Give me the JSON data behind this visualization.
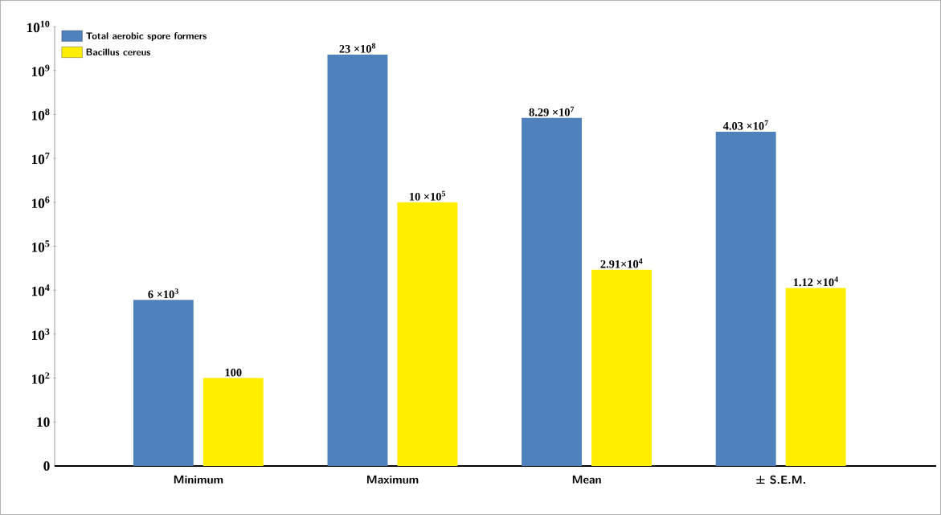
{
  "chart_data": {
    "type": "bar",
    "categories": [
      "Minimum",
      "Maximum",
      "Mean",
      "± S.E.M."
    ],
    "series": [
      {
        "name": "Total aerobic spore formers",
        "color": "#4f81bd",
        "values": [
          6000,
          2300000000,
          82900000,
          40300000
        ],
        "value_labels": [
          "6 ×10$^{3}$",
          "23 ×10$^{8}$",
          "8.29 ×10$^{7}$",
          "4.03 ×10$^{7}$"
        ]
      },
      {
        "name": "Bacillus cereus",
        "color": "#ffee00",
        "values": [
          100,
          1000000,
          29100,
          11200
        ],
        "value_labels": [
          "100",
          "10 ×10$^{5}$",
          "2.91×10$^{4}$",
          "1.12 ×10$^{4}$"
        ]
      }
    ],
    "log": true,
    "ylim": [
      0,
      10000000000
    ],
    "yticks": [
      0,
      {
        "value": 10,
        "label": "10"
      },
      {
        "value": 100,
        "label": "10$^{2}$"
      },
      {
        "value": 1000,
        "label": "10$^{3}$"
      },
      {
        "value": 10000,
        "label": "10$^{4}$"
      },
      {
        "value": 100000,
        "label": "10$^{5}$"
      },
      {
        "value": 1000000,
        "label": "10$^{6}$"
      },
      {
        "value": 10000000,
        "label": "10$^{7}$"
      },
      {
        "value": 100000000,
        "label": "10$^{8}$"
      },
      {
        "value": 1000000000,
        "label": "10$^{9}$"
      },
      {
        "value": 10000000000,
        "label": "10$^{10}$"
      }
    ],
    "legend": "top left"
  }
}
